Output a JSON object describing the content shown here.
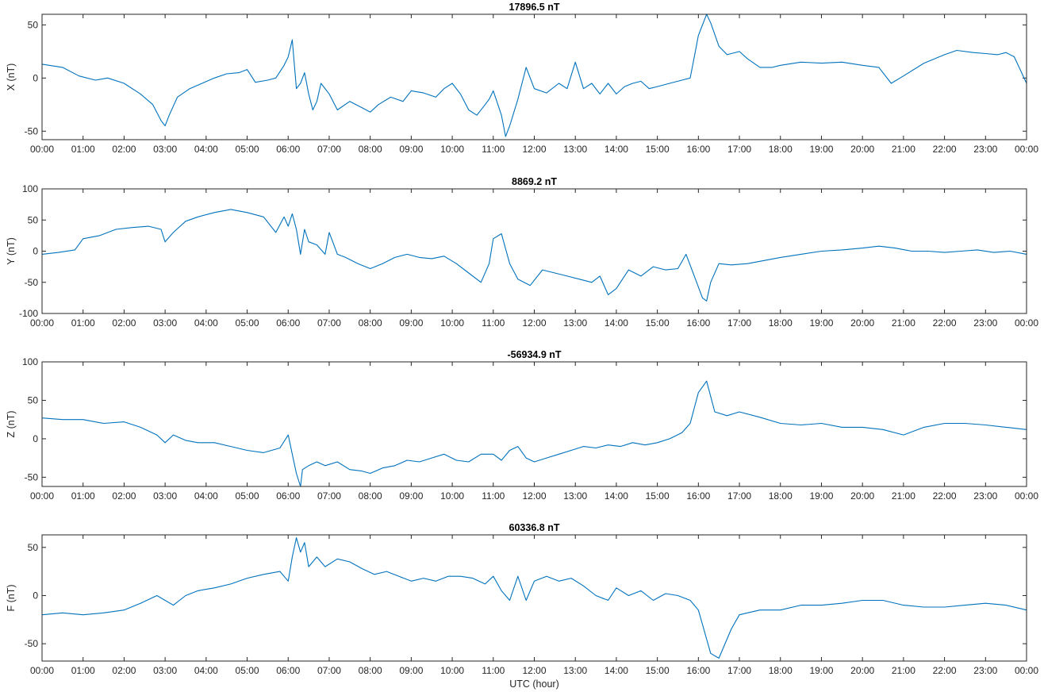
{
  "colors": {
    "line": "#0072BD",
    "axis": "#262626",
    "background": "#ffffff"
  },
  "xlabel": "UTC (hour)",
  "chart_data": [
    {
      "type": "line",
      "title": "17896.5 nT",
      "ylabel": "X (nT)",
      "xlim": [
        0,
        24
      ],
      "ylim": [
        -58,
        60
      ],
      "yticks": [
        -50,
        0,
        50
      ],
      "xticks": [
        "00:00",
        "01:00",
        "02:00",
        "03:00",
        "04:00",
        "05:00",
        "06:00",
        "07:00",
        "08:00",
        "09:00",
        "10:00",
        "11:00",
        "12:00",
        "13:00",
        "14:00",
        "15:00",
        "16:00",
        "17:00",
        "18:00",
        "19:00",
        "20:00",
        "21:00",
        "22:00",
        "23:00",
        "00:00"
      ],
      "x_unit": "hours since 00:00 UTC",
      "x": [
        0,
        0.5,
        0.9,
        1.3,
        1.6,
        2.0,
        2.4,
        2.7,
        2.9,
        3.0,
        3.1,
        3.3,
        3.6,
        3.9,
        4.2,
        4.5,
        4.8,
        5.0,
        5.2,
        5.5,
        5.7,
        5.9,
        6.0,
        6.1,
        6.2,
        6.3,
        6.4,
        6.5,
        6.6,
        6.7,
        6.8,
        7.0,
        7.2,
        7.5,
        7.8,
        8.0,
        8.2,
        8.5,
        8.8,
        9.0,
        9.3,
        9.6,
        9.8,
        10.0,
        10.2,
        10.4,
        10.6,
        10.8,
        10.9,
        11.0,
        11.2,
        11.3,
        11.4,
        11.6,
        11.8,
        12.0,
        12.3,
        12.6,
        12.8,
        13.0,
        13.2,
        13.4,
        13.6,
        13.8,
        14.0,
        14.2,
        14.4,
        14.6,
        14.8,
        15.0,
        15.3,
        15.6,
        15.8,
        15.9,
        16.0,
        16.2,
        16.3,
        16.5,
        16.7,
        17.0,
        17.2,
        17.5,
        17.8,
        18.0,
        18.5,
        19.0,
        19.5,
        20.0,
        20.4,
        20.7,
        21.0,
        21.5,
        22.0,
        22.3,
        22.7,
        23.0,
        23.3,
        23.5,
        23.7,
        24.0
      ],
      "values": [
        13,
        10,
        2,
        -2,
        0,
        -5,
        -15,
        -25,
        -40,
        -45,
        -35,
        -18,
        -10,
        -5,
        0,
        4,
        5,
        8,
        -4,
        -2,
        0,
        12,
        20,
        36,
        -10,
        -5,
        5,
        -15,
        -30,
        -22,
        -5,
        -15,
        -30,
        -22,
        -28,
        -32,
        -25,
        -18,
        -22,
        -12,
        -14,
        -18,
        -10,
        -5,
        -15,
        -30,
        -35,
        -25,
        -20,
        -12,
        -35,
        -55,
        -45,
        -20,
        10,
        -10,
        -14,
        -5,
        -10,
        15,
        -10,
        -5,
        -15,
        -5,
        -15,
        -8,
        -5,
        -3,
        -10,
        -8,
        -5,
        -2,
        0,
        20,
        40,
        60,
        52,
        30,
        22,
        25,
        18,
        10,
        10,
        12,
        15,
        14,
        15,
        12,
        10,
        -5,
        2,
        14,
        22,
        26,
        24,
        23,
        22,
        24,
        20,
        -5
      ]
    },
    {
      "type": "line",
      "title": "8869.2 nT",
      "ylabel": "Y (nT)",
      "xlim": [
        0,
        24
      ],
      "ylim": [
        -100,
        100
      ],
      "yticks": [
        -100,
        -50,
        0,
        50,
        100
      ],
      "xticks": [
        "00:00",
        "01:00",
        "02:00",
        "03:00",
        "04:00",
        "05:00",
        "06:00",
        "07:00",
        "08:00",
        "09:00",
        "10:00",
        "11:00",
        "12:00",
        "13:00",
        "14:00",
        "15:00",
        "16:00",
        "17:00",
        "18:00",
        "19:00",
        "20:00",
        "21:00",
        "22:00",
        "23:00",
        "00:00"
      ],
      "x_unit": "hours since 00:00 UTC",
      "x": [
        0,
        0.4,
        0.8,
        1.0,
        1.4,
        1.8,
        2.2,
        2.6,
        2.9,
        3.0,
        3.2,
        3.5,
        3.8,
        4.2,
        4.6,
        5.0,
        5.4,
        5.7,
        5.9,
        6.0,
        6.1,
        6.2,
        6.3,
        6.4,
        6.5,
        6.7,
        6.9,
        7.0,
        7.2,
        7.4,
        7.7,
        8.0,
        8.3,
        8.6,
        8.9,
        9.2,
        9.5,
        9.8,
        10.1,
        10.4,
        10.7,
        10.9,
        11.0,
        11.2,
        11.4,
        11.6,
        11.9,
        12.2,
        12.5,
        12.8,
        13.1,
        13.4,
        13.6,
        13.8,
        14.0,
        14.3,
        14.6,
        14.9,
        15.2,
        15.5,
        15.7,
        15.9,
        16.1,
        16.2,
        16.3,
        16.5,
        16.8,
        17.2,
        17.6,
        18.0,
        18.5,
        19.0,
        19.5,
        20.0,
        20.4,
        20.8,
        21.2,
        21.6,
        22.0,
        22.4,
        22.8,
        23.2,
        23.6,
        24.0
      ],
      "values": [
        -5,
        -2,
        2,
        20,
        25,
        35,
        38,
        40,
        35,
        15,
        30,
        48,
        55,
        62,
        67,
        62,
        55,
        30,
        55,
        40,
        60,
        35,
        -5,
        35,
        15,
        10,
        -5,
        30,
        -5,
        -10,
        -20,
        -28,
        -20,
        -10,
        -5,
        -10,
        -12,
        -8,
        -20,
        -35,
        -50,
        -20,
        20,
        28,
        -20,
        -45,
        -55,
        -30,
        -35,
        -40,
        -45,
        -50,
        -40,
        -70,
        -60,
        -30,
        -40,
        -25,
        -30,
        -28,
        -5,
        -40,
        -75,
        -80,
        -50,
        -20,
        -22,
        -20,
        -15,
        -10,
        -5,
        0,
        2,
        5,
        8,
        5,
        0,
        0,
        -2,
        0,
        2,
        -2,
        0,
        -5
      ]
    },
    {
      "type": "line",
      "title": "-56934.9 nT",
      "ylabel": "Z (nT)",
      "xlim": [
        0,
        24
      ],
      "ylim": [
        -62,
        100
      ],
      "yticks": [
        -50,
        0,
        50,
        100
      ],
      "xticks": [
        "00:00",
        "01:00",
        "02:00",
        "03:00",
        "04:00",
        "05:00",
        "06:00",
        "07:00",
        "08:00",
        "09:00",
        "10:00",
        "11:00",
        "12:00",
        "13:00",
        "14:00",
        "15:00",
        "16:00",
        "17:00",
        "18:00",
        "19:00",
        "20:00",
        "21:00",
        "22:00",
        "23:00",
        "00:00"
      ],
      "x_unit": "hours since 00:00 UTC",
      "x": [
        0,
        0.5,
        1.0,
        1.5,
        2.0,
        2.4,
        2.8,
        3.0,
        3.2,
        3.5,
        3.8,
        4.2,
        4.6,
        5.0,
        5.4,
        5.8,
        6.0,
        6.1,
        6.2,
        6.3,
        6.35,
        6.5,
        6.7,
        6.9,
        7.2,
        7.5,
        7.8,
        8.0,
        8.3,
        8.6,
        8.9,
        9.2,
        9.5,
        9.8,
        10.1,
        10.4,
        10.7,
        11.0,
        11.2,
        11.4,
        11.6,
        11.8,
        12.0,
        12.3,
        12.6,
        12.9,
        13.2,
        13.5,
        13.8,
        14.1,
        14.4,
        14.7,
        15.0,
        15.3,
        15.6,
        15.8,
        16.0,
        16.2,
        16.4,
        16.7,
        17.0,
        17.5,
        18.0,
        18.5,
        19.0,
        19.5,
        20.0,
        20.5,
        21.0,
        21.5,
        22.0,
        22.5,
        23.0,
        23.5,
        24.0
      ],
      "values": [
        27,
        25,
        25,
        20,
        22,
        15,
        5,
        -5,
        5,
        -2,
        -5,
        -5,
        -10,
        -15,
        -18,
        -12,
        5,
        -20,
        -45,
        -62,
        -40,
        -35,
        -30,
        -35,
        -30,
        -40,
        -42,
        -45,
        -38,
        -35,
        -28,
        -30,
        -25,
        -20,
        -28,
        -30,
        -20,
        -20,
        -28,
        -15,
        -10,
        -25,
        -30,
        -25,
        -20,
        -15,
        -10,
        -12,
        -8,
        -10,
        -5,
        -8,
        -5,
        0,
        8,
        20,
        60,
        75,
        35,
        30,
        35,
        28,
        20,
        18,
        20,
        15,
        15,
        12,
        5,
        15,
        20,
        20,
        18,
        15,
        12
      ]
    },
    {
      "type": "line",
      "title": "60336.8 nT",
      "ylabel": "F (nT)",
      "xlim": [
        0,
        24
      ],
      "ylim": [
        -68,
        63
      ],
      "yticks": [
        -50,
        0,
        50
      ],
      "xticks": [
        "00:00",
        "01:00",
        "02:00",
        "03:00",
        "04:00",
        "05:00",
        "06:00",
        "07:00",
        "08:00",
        "09:00",
        "10:00",
        "11:00",
        "12:00",
        "13:00",
        "14:00",
        "15:00",
        "16:00",
        "17:00",
        "18:00",
        "19:00",
        "20:00",
        "21:00",
        "22:00",
        "23:00",
        "00:00"
      ],
      "x_unit": "hours since 00:00 UTC",
      "x": [
        0,
        0.5,
        1.0,
        1.5,
        2.0,
        2.4,
        2.8,
        3.0,
        3.2,
        3.5,
        3.8,
        4.2,
        4.6,
        5.0,
        5.4,
        5.8,
        6.0,
        6.1,
        6.2,
        6.3,
        6.4,
        6.5,
        6.7,
        6.9,
        7.2,
        7.5,
        7.8,
        8.1,
        8.4,
        8.7,
        9.0,
        9.3,
        9.6,
        9.9,
        10.2,
        10.5,
        10.8,
        11.0,
        11.2,
        11.4,
        11.6,
        11.8,
        12.0,
        12.3,
        12.6,
        12.9,
        13.2,
        13.5,
        13.8,
        14.0,
        14.3,
        14.6,
        14.9,
        15.2,
        15.5,
        15.8,
        16.0,
        16.1,
        16.3,
        16.5,
        16.8,
        17.0,
        17.5,
        18.0,
        18.5,
        19.0,
        19.5,
        20.0,
        20.5,
        21.0,
        21.5,
        22.0,
        22.5,
        23.0,
        23.5,
        24.0
      ],
      "values": [
        -20,
        -18,
        -20,
        -18,
        -15,
        -8,
        0,
        -5,
        -10,
        0,
        5,
        8,
        12,
        18,
        22,
        25,
        15,
        40,
        60,
        45,
        55,
        30,
        40,
        30,
        38,
        35,
        28,
        22,
        25,
        20,
        15,
        18,
        15,
        20,
        20,
        18,
        12,
        20,
        5,
        -5,
        20,
        -5,
        15,
        20,
        15,
        18,
        10,
        0,
        -5,
        8,
        0,
        5,
        -5,
        2,
        0,
        -5,
        -15,
        -30,
        -60,
        -65,
        -35,
        -20,
        -15,
        -15,
        -10,
        -10,
        -8,
        -5,
        -5,
        -10,
        -12,
        -12,
        -10,
        -8,
        -10,
        -15
      ]
    }
  ]
}
